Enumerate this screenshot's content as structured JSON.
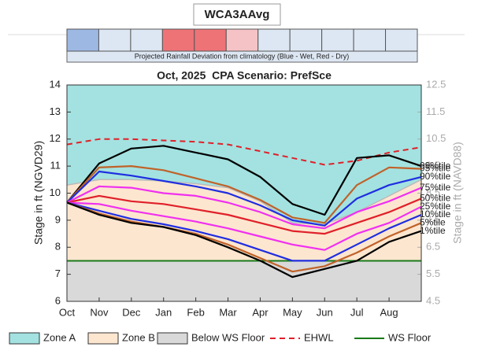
{
  "chart_data": {
    "type": "line",
    "header": "WCA3AAvg",
    "rainfall_caption": "Projected Rainfall Deviation from climatology (Blue - Wet, Red - Dry)",
    "rainfall_colors": [
      "#9db8e2",
      "#dde7f3",
      "#dde7f3",
      "#ee7377",
      "#ee7377",
      "#f5c3c6",
      "#dde7f3",
      "#dde7f3",
      "#dde7f3",
      "#dde7f3",
      "#dde7f3"
    ],
    "title": "Oct, 2025  CPA Scenario: PrefSce",
    "y_label": "Stage in ft (NGVD29)",
    "y2_label": "Stage in ft (NAVD88)",
    "x": [
      0,
      1,
      2,
      3,
      4,
      5,
      6,
      7,
      8,
      9,
      10,
      11
    ],
    "xlim": [
      0,
      11
    ],
    "xticks": [
      {
        "value": 0,
        "label": "Oct"
      },
      {
        "value": 1,
        "label": "Nov"
      },
      {
        "value": 2,
        "label": "Dec"
      },
      {
        "value": 3,
        "label": "Jan"
      },
      {
        "value": 4,
        "label": "Feb"
      },
      {
        "value": 5,
        "label": "Mar"
      },
      {
        "value": 6,
        "label": "Apr"
      },
      {
        "value": 7,
        "label": "May"
      },
      {
        "value": 8,
        "label": "Jun"
      },
      {
        "value": 9,
        "label": "Jul"
      },
      {
        "value": 10,
        "label": "Aug"
      }
    ],
    "ylim": [
      6,
      14
    ],
    "yticks": [
      6,
      7,
      8,
      9,
      10,
      11,
      12,
      13,
      14
    ],
    "y2lim": [
      4.5,
      12.5
    ],
    "y2ticks": [
      4.5,
      5.5,
      6.5,
      7.5,
      8.5,
      9.5,
      10.5,
      11.5,
      12.5
    ],
    "zones": [
      {
        "name": "Zone A",
        "color": "#a3e2e0"
      },
      {
        "name": "Zone B",
        "color": "#fde6cf"
      },
      {
        "name": "Below WS Floor",
        "color": "#d9d9d9"
      }
    ],
    "zone_boundary": [
      10.3,
      10.5,
      10.5,
      10.45,
      10.35,
      10.2,
      9.7,
      8.9,
      8.85,
      9.3,
      9.9,
      10.5
    ],
    "reference_lines": [
      {
        "name": "WS Floor",
        "color": "#1a7a1a",
        "value": 7.5
      }
    ],
    "series": [
      {
        "name": "EHWL",
        "color": "#e0202a",
        "dashed": true,
        "values": [
          11.8,
          12.0,
          12.0,
          11.95,
          11.9,
          11.8,
          11.55,
          11.3,
          11.05,
          11.2,
          11.5,
          11.7
        ]
      },
      {
        "name": "99%tile",
        "color": "#000000",
        "values": [
          9.65,
          11.1,
          11.65,
          11.75,
          11.5,
          11.25,
          10.6,
          9.6,
          9.2,
          11.3,
          11.4,
          11.0
        ]
      },
      {
        "name": "95%tile",
        "color": "#c0622a",
        "values": [
          9.65,
          10.95,
          11.0,
          10.85,
          10.55,
          10.25,
          9.75,
          9.1,
          8.9,
          10.3,
          10.95,
          10.9
        ]
      },
      {
        "name": "90%tile",
        "color": "#1f2ee0",
        "values": [
          9.65,
          10.8,
          10.65,
          10.45,
          10.25,
          10.0,
          9.55,
          9.0,
          8.8,
          9.8,
          10.3,
          10.6
        ]
      },
      {
        "name": "75%tile",
        "color": "#f030f0",
        "values": [
          9.65,
          10.25,
          10.2,
          10.0,
          9.9,
          9.65,
          9.3,
          8.85,
          8.7,
          9.3,
          9.7,
          10.2
        ]
      },
      {
        "name": "50%tile",
        "color": "#e0202a",
        "values": [
          9.65,
          9.9,
          9.7,
          9.6,
          9.4,
          9.2,
          8.9,
          8.6,
          8.5,
          8.9,
          9.3,
          9.8
        ]
      },
      {
        "name": "25%tile",
        "color": "#f030f0",
        "values": [
          9.65,
          9.6,
          9.35,
          9.15,
          8.95,
          8.7,
          8.4,
          8.1,
          7.9,
          8.5,
          8.9,
          9.5
        ]
      },
      {
        "name": "10%tile",
        "color": "#1f2ee0",
        "values": [
          9.65,
          9.35,
          9.05,
          8.85,
          8.6,
          8.3,
          7.9,
          7.5,
          7.5,
          8.1,
          8.7,
          9.2
        ]
      },
      {
        "name": "5%tile",
        "color": "#c0622a",
        "values": [
          9.65,
          9.25,
          8.95,
          8.75,
          8.5,
          8.1,
          7.6,
          7.1,
          7.3,
          7.8,
          8.4,
          8.9
        ]
      },
      {
        "name": "1%tile",
        "color": "#000000",
        "values": [
          9.65,
          9.2,
          8.9,
          8.75,
          8.45,
          8.0,
          7.5,
          6.9,
          7.2,
          7.5,
          8.2,
          8.6
        ]
      }
    ]
  }
}
